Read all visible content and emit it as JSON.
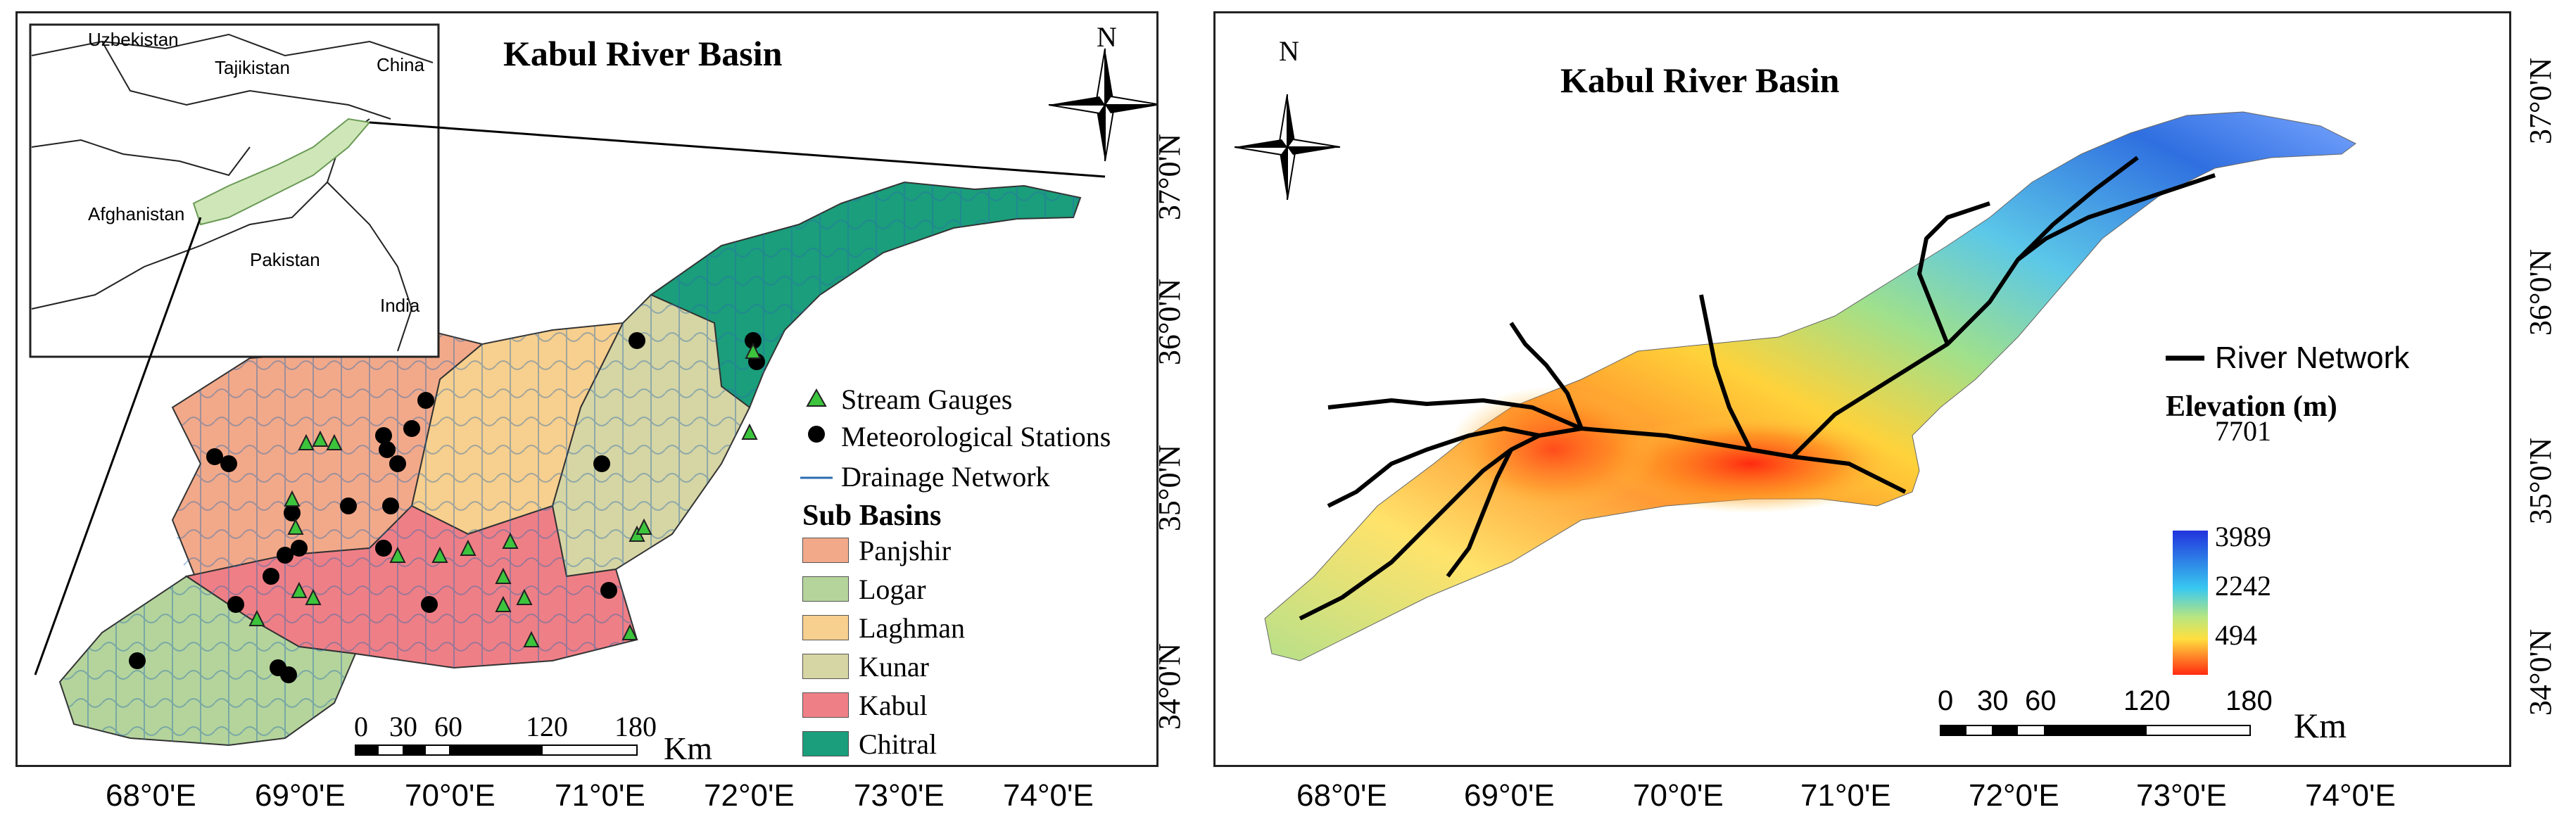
{
  "left_map": {
    "title": "Kabul River Basin",
    "north": "N",
    "inset_countries": [
      "Uzbekistan",
      "Tajikistan",
      "China",
      "Afghanistan",
      "Pakistan",
      "India"
    ],
    "lat_labels": [
      "37°0'N",
      "36°0'N",
      "35°0'N",
      "34°0'N"
    ],
    "lon_labels": [
      "68°0'E",
      "69°0'E",
      "70°0'E",
      "71°0'E",
      "72°0'E",
      "73°0'E",
      "74°0'E"
    ],
    "legend": {
      "stream_gauges": "Stream Gauges",
      "met_stations": "Meteorological Stations",
      "drainage": "Drainage Network",
      "sub_basins_title": "Sub Basins",
      "sub_basins": [
        {
          "name": "Panjshir",
          "color": "#f2a98a"
        },
        {
          "name": "Logar",
          "color": "#b4d49c"
        },
        {
          "name": "Laghman",
          "color": "#f7cf8e"
        },
        {
          "name": "Kunar",
          "color": "#d6d5a4"
        },
        {
          "name": "Kabul",
          "color": "#ef7f86"
        },
        {
          "name": "Chitral",
          "color": "#1a9e7b"
        }
      ]
    },
    "scale": {
      "ticks": [
        "0",
        "30",
        "60",
        "120",
        "180"
      ],
      "unit": "Km"
    }
  },
  "right_map": {
    "title": "Kabul River Basin",
    "north": "N",
    "lat_labels": [
      "37°0'N",
      "36°0'N",
      "35°0'N",
      "34°0'N"
    ],
    "lon_labels": [
      "68°0'E",
      "69°0'E",
      "70°0'E",
      "71°0'E",
      "72°0'E",
      "73°0'E",
      "74°0'E"
    ],
    "legend": {
      "river_network": "River Network",
      "elevation_title": "Elevation (m)",
      "elevation_ticks": [
        "7701",
        "3989",
        "2242",
        "494"
      ]
    },
    "scale": {
      "ticks": [
        "0",
        "30",
        "60",
        "120",
        "180"
      ],
      "unit": "Km"
    }
  },
  "colors": {
    "panjshir": "#f2a98a",
    "logar": "#b4d49c",
    "laghman": "#f7cf8e",
    "kunar": "#d6d5a4",
    "kabul": "#ef7f86",
    "chitral": "#1a9e7b",
    "drainage": "#2b6cb0",
    "gauge": "#3cc43c"
  }
}
